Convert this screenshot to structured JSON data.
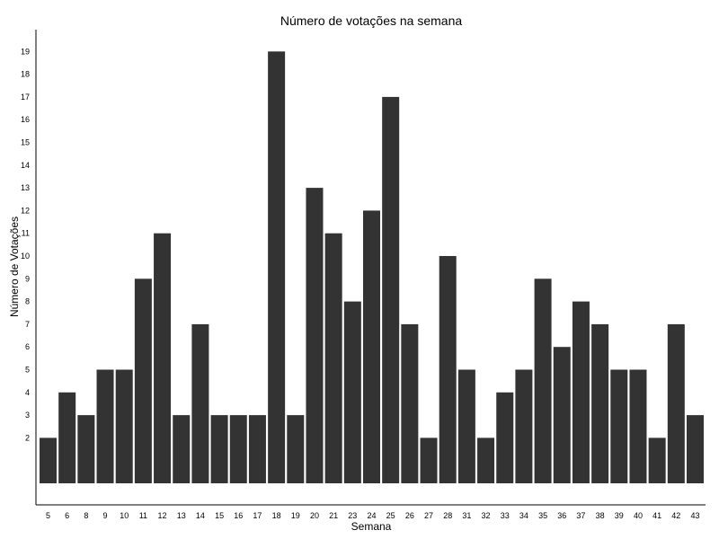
{
  "chart_data": {
    "type": "bar",
    "title": "Número de votações na semana",
    "xlabel": "Semana",
    "ylabel": "Número de Votações",
    "categories": [
      "5",
      "6",
      "8",
      "9",
      "10",
      "11",
      "12",
      "13",
      "14",
      "15",
      "16",
      "17",
      "18",
      "19",
      "20",
      "21",
      "23",
      "24",
      "25",
      "26",
      "27",
      "28",
      "31",
      "32",
      "33",
      "34",
      "35",
      "36",
      "37",
      "38",
      "39",
      "40",
      "41",
      "42",
      "43"
    ],
    "values": [
      2,
      4,
      3,
      5,
      5,
      9,
      11,
      3,
      7,
      3,
      3,
      3,
      19,
      3,
      13,
      11,
      8,
      12,
      17,
      7,
      2,
      10,
      5,
      2,
      4,
      5,
      9,
      6,
      8,
      7,
      5,
      5,
      2,
      7,
      3
    ],
    "yticks": [
      2,
      3,
      4,
      5,
      6,
      7,
      8,
      9,
      10,
      11,
      12,
      13,
      14,
      15,
      16,
      17,
      18,
      19
    ],
    "ylim": [
      0,
      20
    ],
    "grid": false,
    "bar_color": "#333333"
  }
}
